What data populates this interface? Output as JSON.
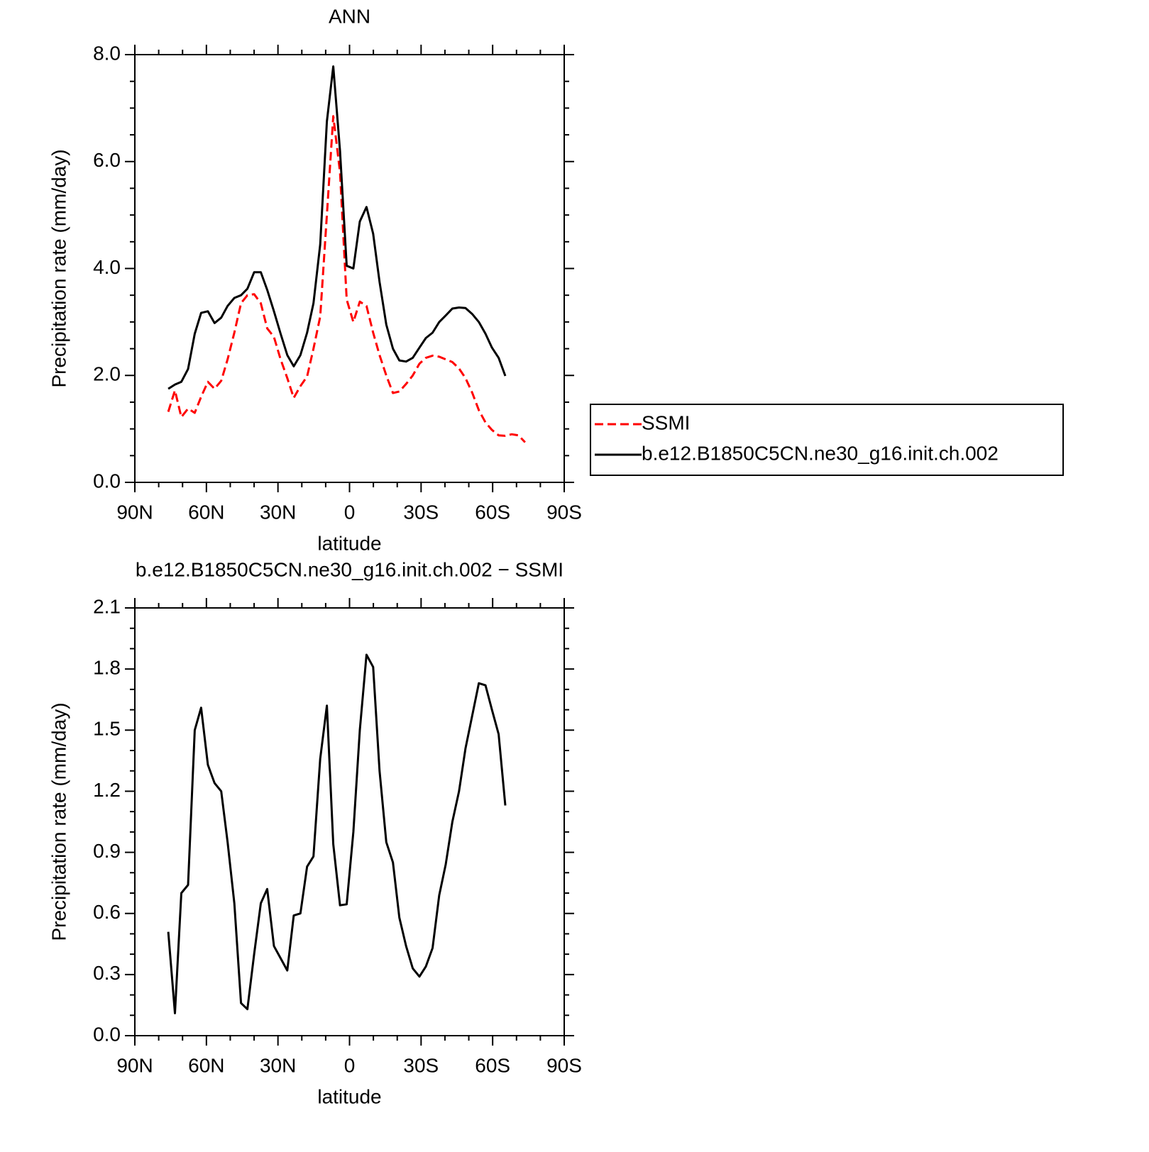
{
  "chart_data": [
    {
      "type": "line",
      "title": "ANN",
      "xlabel": "latitude",
      "ylabel": "Precipitation rate (mm/day)",
      "xlim": [
        90,
        -90
      ],
      "xticks": [
        {
          "value": 90,
          "label": "90N"
        },
        {
          "value": 60,
          "label": "60N"
        },
        {
          "value": 30,
          "label": "30N"
        },
        0,
        {
          "value": -30,
          "label": "30S"
        },
        {
          "value": -60,
          "label": "60S"
        },
        {
          "value": -90,
          "label": "90S"
        }
      ],
      "ylim": [
        0,
        8
      ],
      "yticks": [
        {
          "value": 0,
          "label": "0.0"
        },
        {
          "value": 2,
          "label": "2.0"
        },
        {
          "value": 4,
          "label": "4.0"
        },
        {
          "value": 6,
          "label": "6.0"
        },
        {
          "value": 8,
          "label": "8.0"
        }
      ],
      "legend": "right",
      "x": [
        76.0,
        73.2,
        70.5,
        67.7,
        64.9,
        62.2,
        59.4,
        56.6,
        53.8,
        51.1,
        48.3,
        45.5,
        42.8,
        40.0,
        37.2,
        34.5,
        31.7,
        28.9,
        26.1,
        23.4,
        20.6,
        17.8,
        15.1,
        12.3,
        9.5,
        6.8,
        4.0,
        1.2,
        -1.6,
        -4.3,
        -7.1,
        -9.9,
        -12.6,
        -15.4,
        -18.2,
        -20.9,
        -23.7,
        -26.5,
        -29.3,
        -32.0,
        -34.8,
        -37.6,
        -40.3,
        -43.1,
        -45.9,
        -48.6,
        -51.4,
        -54.2,
        -57.0,
        -59.7,
        -62.5,
        -65.3,
        -68.0,
        -70.8,
        -73.6
      ],
      "series": [
        {
          "name": "SSMI",
          "color": "#ff0000",
          "style": "dashed",
          "values": [
            1.32,
            1.72,
            1.22,
            1.38,
            1.3,
            1.6,
            1.88,
            1.75,
            1.9,
            2.3,
            2.8,
            3.35,
            3.5,
            3.52,
            3.35,
            2.88,
            2.72,
            2.3,
            1.95,
            1.58,
            1.8,
            1.98,
            2.5,
            3.1,
            5.0,
            6.85,
            5.8,
            3.42,
            3.0,
            3.38,
            3.3,
            2.8,
            2.38,
            2.0,
            1.67,
            1.7,
            1.84,
            2.0,
            2.22,
            2.33,
            2.37,
            2.35,
            2.3,
            2.25,
            2.13,
            1.95,
            1.68,
            1.35,
            1.12,
            0.98,
            0.88,
            0.87,
            0.9,
            0.88,
            0.75
          ]
        },
        {
          "name": "b.e12.B1850C5CN.ne30_g16.init.ch.002",
          "color": "#000000",
          "style": "solid",
          "values": [
            1.75,
            1.83,
            1.88,
            2.12,
            2.78,
            3.17,
            3.2,
            2.98,
            3.08,
            3.3,
            3.45,
            3.5,
            3.62,
            3.93,
            3.93,
            3.6,
            3.2,
            2.78,
            2.38,
            2.17,
            2.38,
            2.8,
            3.35,
            4.45,
            6.75,
            7.78,
            6.2,
            4.05,
            4.0,
            4.88,
            5.15,
            4.65,
            3.75,
            2.95,
            2.5,
            2.28,
            2.26,
            2.33,
            2.52,
            2.7,
            2.8,
            3.0,
            3.12,
            3.25,
            3.27,
            3.26,
            3.15,
            3.0,
            2.78,
            2.52,
            2.33,
            1.99,
            null,
            null,
            null
          ]
        }
      ]
    },
    {
      "type": "line",
      "title": "b.e12.B1850C5CN.ne30_g16.init.ch.002 − SSMI",
      "xlabel": "latitude",
      "ylabel": "Precipitation rate (mm/day)",
      "xlim": [
        90,
        -90
      ],
      "xticks": [
        {
          "value": 90,
          "label": "90N"
        },
        {
          "value": 60,
          "label": "60N"
        },
        {
          "value": 30,
          "label": "30N"
        },
        0,
        {
          "value": -30,
          "label": "30S"
        },
        {
          "value": -60,
          "label": "60S"
        },
        {
          "value": -90,
          "label": "90S"
        }
      ],
      "ylim": [
        0,
        2.1
      ],
      "yticks": [
        {
          "value": 0,
          "label": "0.0"
        },
        0.3,
        0.6,
        0.9,
        1.2,
        1.5,
        1.8,
        2.1
      ],
      "x": [
        76.0,
        73.2,
        70.5,
        67.7,
        64.9,
        62.2,
        59.4,
        56.6,
        53.8,
        51.1,
        48.3,
        45.5,
        42.8,
        40.0,
        37.2,
        34.5,
        31.7,
        28.9,
        26.1,
        23.4,
        20.6,
        17.8,
        15.1,
        12.3,
        9.5,
        6.8,
        4.0,
        1.2,
        -1.6,
        -4.3,
        -7.1,
        -9.9,
        -12.6,
        -15.4,
        -18.2,
        -20.9,
        -23.7,
        -26.5,
        -29.3,
        -32.0,
        -34.8,
        -37.6,
        -40.3,
        -43.1,
        -45.9,
        -48.6,
        -51.4,
        -54.2,
        -57.0,
        -59.7,
        -62.5,
        -65.3
      ],
      "color": "#000000",
      "values": [
        0.51,
        0.11,
        0.7,
        0.74,
        1.5,
        1.61,
        1.33,
        1.24,
        1.2,
        0.95,
        0.65,
        0.16,
        0.13,
        0.4,
        0.65,
        0.72,
        0.44,
        0.38,
        0.32,
        0.59,
        0.6,
        0.83,
        0.88,
        1.36,
        1.62,
        0.94,
        0.64,
        0.645,
        1.0,
        1.5,
        1.87,
        1.81,
        1.3,
        0.95,
        0.85,
        0.58,
        0.44,
        0.33,
        0.29,
        0.34,
        0.43,
        0.69,
        0.84,
        1.05,
        1.2,
        1.41,
        1.57,
        1.73,
        1.72,
        1.6,
        1.48,
        1.13
      ]
    }
  ]
}
